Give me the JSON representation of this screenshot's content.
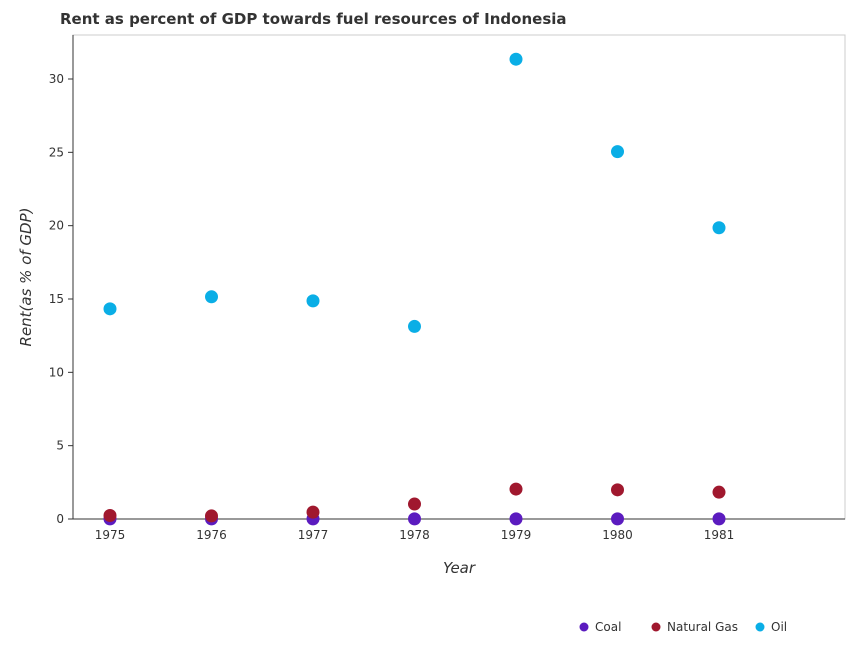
{
  "chart_data": {
    "type": "scatter",
    "title": "Rent as percent of GDP towards fuel resources of Indonesia",
    "xlabel": "Year",
    "ylabel": "Rent(as % of GDP)",
    "x": [
      "1975",
      "1976",
      "1977",
      "1978",
      "1979",
      "1980",
      "1981"
    ],
    "ylim": [
      0,
      33
    ],
    "yticks": [
      0,
      5,
      10,
      15,
      20,
      25,
      30
    ],
    "grid": false,
    "legend_position": "bottom-right",
    "series": [
      {
        "name": "Coal",
        "color": "#5b1bbf",
        "values": [
          0.01,
          0.01,
          0.01,
          0.01,
          0.01,
          0.01,
          0.01
        ]
      },
      {
        "name": "Natural Gas",
        "color": "#a0182e",
        "values": [
          0.24,
          0.21,
          0.47,
          1.02,
          2.04,
          1.99,
          1.83
        ]
      },
      {
        "name": "Oil",
        "color": "#0aaee6",
        "values": [
          14.33,
          15.15,
          14.87,
          13.13,
          31.35,
          25.05,
          19.86
        ]
      }
    ]
  }
}
